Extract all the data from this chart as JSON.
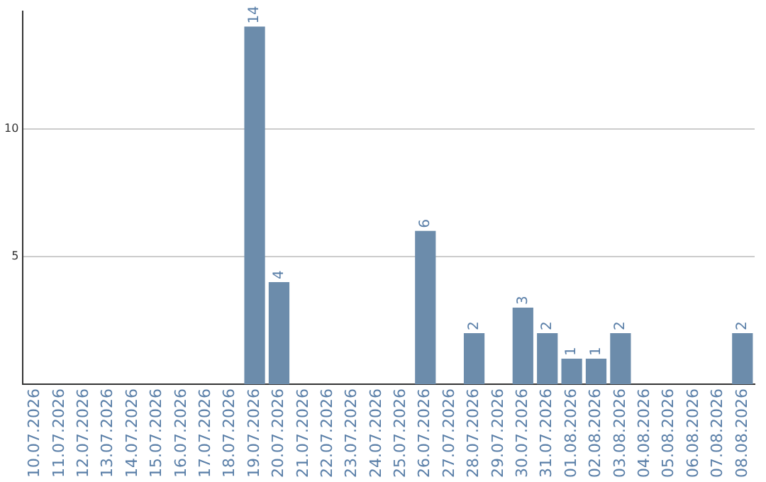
{
  "chart_data": {
    "type": "bar",
    "categories": [
      "10.07.2026",
      "11.07.2026",
      "12.07.2026",
      "13.07.2026",
      "14.07.2026",
      "15.07.2026",
      "16.07.2026",
      "17.07.2026",
      "18.07.2026",
      "19.07.2026",
      "20.07.2026",
      "21.07.2026",
      "22.07.2026",
      "23.07.2026",
      "24.07.2026",
      "25.07.2026",
      "26.07.2026",
      "27.07.2026",
      "28.07.2026",
      "29.07.2026",
      "30.07.2026",
      "31.07.2026",
      "01.08.2026",
      "02.08.2026",
      "03.08.2026",
      "04.08.2026",
      "05.08.2026",
      "06.08.2026",
      "07.08.2026",
      "08.08.2026"
    ],
    "values": [
      0,
      0,
      0,
      0,
      0,
      0,
      0,
      0,
      0,
      14,
      4,
      0,
      0,
      0,
      0,
      0,
      6,
      0,
      2,
      0,
      3,
      2,
      1,
      1,
      2,
      0,
      0,
      0,
      0,
      2
    ],
    "value_labels": [
      null,
      null,
      null,
      null,
      null,
      null,
      null,
      null,
      null,
      "14",
      "4",
      null,
      null,
      null,
      null,
      null,
      "6",
      null,
      "2",
      null,
      "3",
      "2",
      "1",
      "1",
      "2",
      null,
      null,
      null,
      null,
      "2"
    ],
    "color": "#6c8cab",
    "ylim": [
      0,
      14.6
    ],
    "yticks": [
      5,
      10
    ],
    "grid": "y",
    "legend": false
  }
}
